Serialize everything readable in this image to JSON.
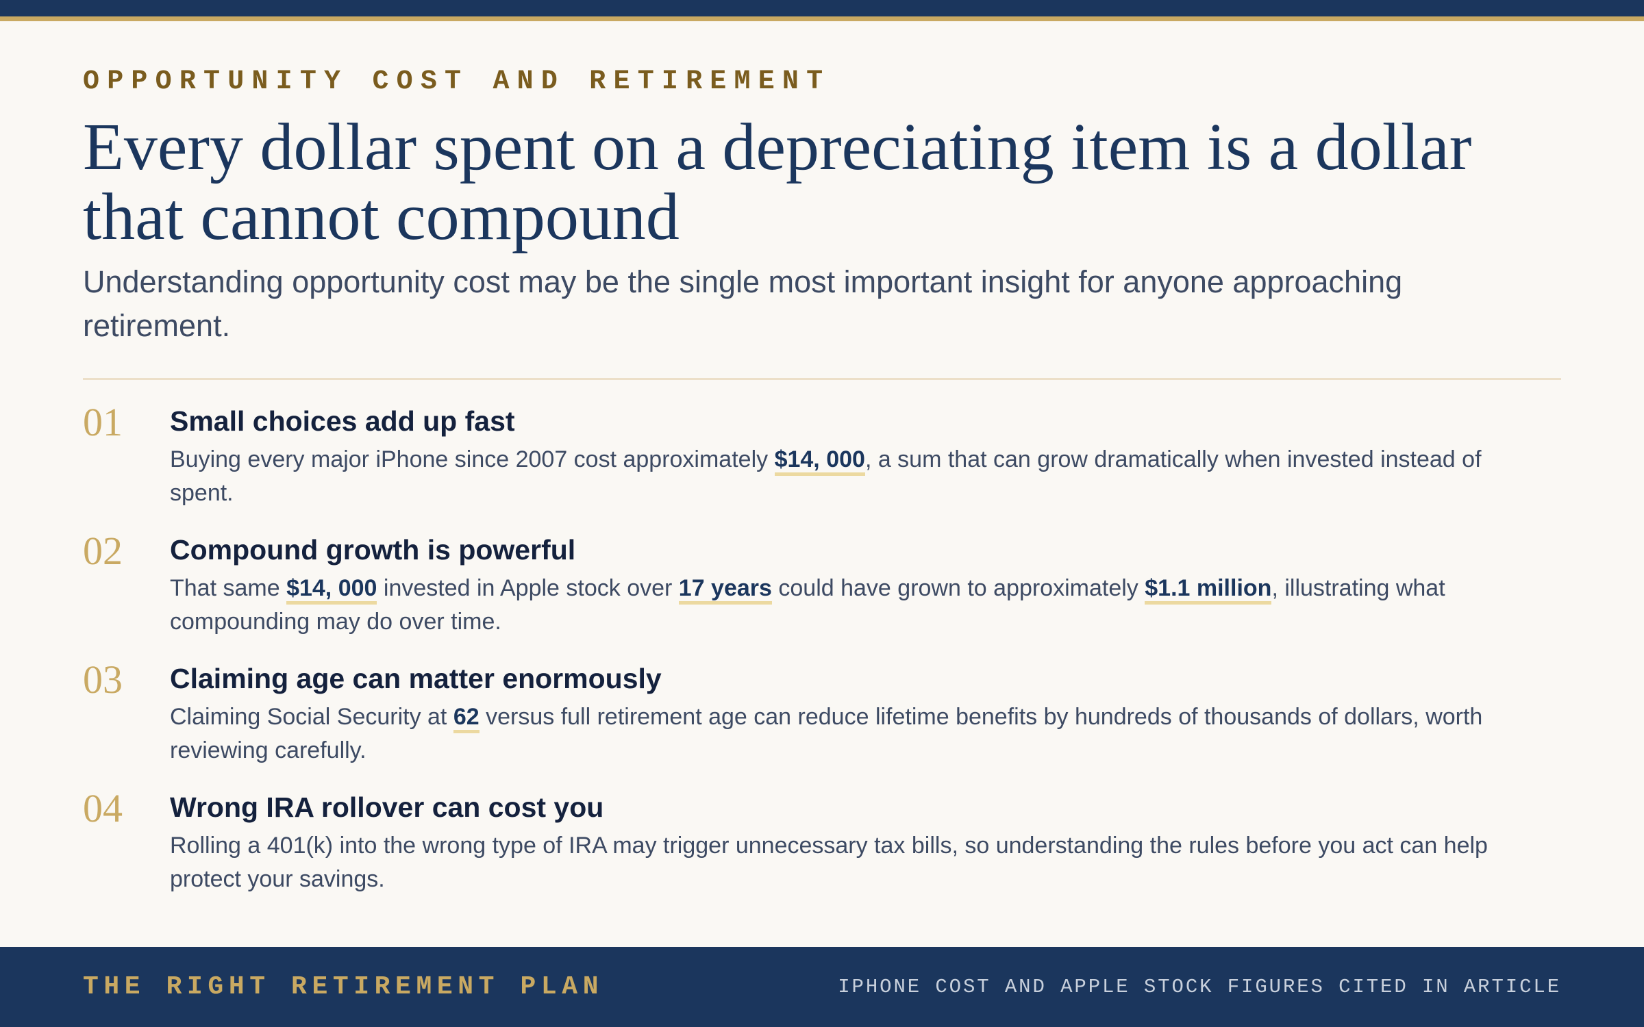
{
  "eyebrow": "OPPORTUNITY COST AND RETIREMENT",
  "title": "Every dollar spent on a depreciating item is a dollar that cannot compound",
  "subtitle": "Understanding opportunity cost may be the single most important insight for anyone approaching retirement.",
  "items": [
    {
      "number": "01",
      "heading": "Small choices add up fast",
      "body": [
        "Buying every major iPhone since 2007 cost approximately ",
        {
          "strong": "$14, 000"
        },
        ", a sum that can grow dramatically when invested instead of spent."
      ]
    },
    {
      "number": "02",
      "heading": "Compound growth is powerful",
      "body": [
        "That same ",
        {
          "strong": "$14, 000"
        },
        " invested in Apple stock over ",
        {
          "strong": "17 years"
        },
        " could have grown to approximately ",
        {
          "strong": "$1.1 million"
        },
        ", illustrating what compounding may do over time."
      ]
    },
    {
      "number": "03",
      "heading": "Claiming age can matter enormously",
      "body": [
        "Claiming Social Security at ",
        {
          "strong": "62"
        },
        " versus full retirement age can reduce lifetime benefits by hundreds of thousands of dollars, worth reviewing carefully."
      ]
    },
    {
      "number": "04",
      "heading": "Wrong IRA rollover can cost you",
      "body": [
        "Rolling a 401(k) into the wrong type of IRA may trigger unnecessary tax bills, so understanding the rules before you act can help protect your savings."
      ]
    }
  ],
  "footer": {
    "brand": "THE RIGHT RETIREMENT PLAN",
    "note": "IPHONE COST AND APPLE STOCK FIGURES CITED IN ARTICLE"
  }
}
